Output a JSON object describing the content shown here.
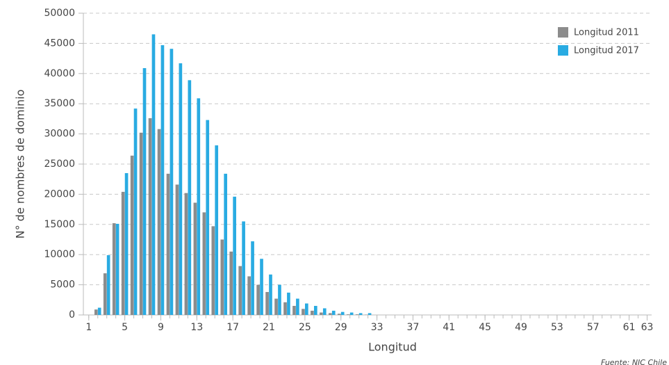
{
  "chart_data": {
    "type": "bar",
    "y_label": "N° de nombres de dominio",
    "x_label": "Longitud",
    "source": "Fuente: NIC Chile",
    "x": [
      1,
      2,
      3,
      4,
      5,
      6,
      7,
      8,
      9,
      10,
      11,
      12,
      13,
      14,
      15,
      16,
      17,
      18,
      19,
      20,
      21,
      22,
      23,
      24,
      25,
      26,
      27,
      28,
      29,
      30,
      31,
      32,
      33,
      34,
      35,
      36,
      37,
      38,
      39,
      40,
      41,
      42,
      43,
      44,
      45,
      46,
      47,
      48,
      49,
      50,
      51,
      52,
      53,
      54,
      55,
      56,
      57,
      58,
      59,
      60,
      61,
      62,
      63
    ],
    "series": [
      {
        "name": "Longitud 2011",
        "color": "#8c8c8c",
        "values": [
          0,
          900,
          6900,
          15200,
          20400,
          26400,
          30200,
          32600,
          30800,
          23400,
          21600,
          20200,
          18600,
          17000,
          14700,
          12500,
          10500,
          8100,
          6400,
          5000,
          3800,
          2700,
          2100,
          1500,
          1000,
          700,
          400,
          300,
          200,
          100,
          100,
          50,
          0,
          0,
          0,
          0,
          0,
          0,
          0,
          0,
          0,
          0,
          0,
          0,
          0,
          0,
          0,
          0,
          0,
          0,
          0,
          0,
          0,
          0,
          0,
          0,
          0,
          0,
          0,
          0,
          0,
          0,
          0
        ]
      },
      {
        "name": "Longitud 2017",
        "color": "#29abe2",
        "values": [
          0,
          1200,
          9900,
          15100,
          23500,
          34200,
          40900,
          46500,
          44700,
          44100,
          41700,
          38900,
          35900,
          32300,
          28100,
          23400,
          19600,
          15500,
          12200,
          9300,
          6700,
          5000,
          3700,
          2700,
          1900,
          1500,
          1100,
          700,
          500,
          400,
          300,
          300,
          0,
          0,
          0,
          0,
          0,
          0,
          0,
          0,
          0,
          0,
          0,
          0,
          0,
          0,
          0,
          0,
          0,
          0,
          0,
          0,
          0,
          0,
          0,
          0,
          0,
          0,
          0,
          0,
          0,
          0,
          0
        ]
      }
    ],
    "xlim": [
      0.4,
      63.5
    ],
    "xticks": [
      1,
      5,
      9,
      13,
      17,
      21,
      25,
      29,
      33,
      37,
      41,
      45,
      49,
      53,
      57,
      61,
      63
    ],
    "ylim": [
      0,
      50000
    ],
    "yticks": [
      0,
      5000,
      10000,
      15000,
      20000,
      25000,
      30000,
      35000,
      40000,
      45000,
      50000
    ],
    "grid": true,
    "legend": "upper right"
  }
}
